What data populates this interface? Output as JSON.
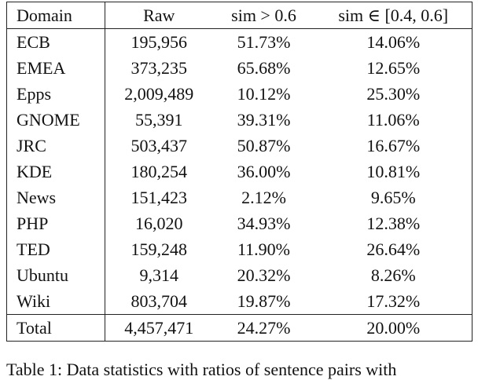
{
  "table": {
    "header": [
      "Domain",
      "Raw",
      "sim > 0.6",
      "sim ∈ [0.4, 0.6]"
    ],
    "rows": [
      [
        "ECB",
        "195,956",
        "51.73%",
        "14.06%"
      ],
      [
        "EMEA",
        "373,235",
        "65.68%",
        "12.65%"
      ],
      [
        "Epps",
        "2,009,489",
        "10.12%",
        "25.30%"
      ],
      [
        "GNOME",
        "55,391",
        "39.31%",
        "11.06%"
      ],
      [
        "JRC",
        "503,437",
        "50.87%",
        "16.67%"
      ],
      [
        "KDE",
        "180,254",
        "36.00%",
        "10.81%"
      ],
      [
        "News",
        "151,423",
        "2.12%",
        "9.65%"
      ],
      [
        "PHP",
        "16,020",
        "34.93%",
        "12.38%"
      ],
      [
        "TED",
        "159,248",
        "11.90%",
        "26.64%"
      ],
      [
        "Ubuntu",
        "9,314",
        "20.32%",
        "8.26%"
      ],
      [
        "Wiki",
        "803,704",
        "19.87%",
        "17.32%"
      ]
    ],
    "total": [
      "Total",
      "4,457,471",
      "24.27%",
      "20.00%"
    ]
  },
  "caption": "Table 1: Data statistics with ratios of sentence pairs with"
}
